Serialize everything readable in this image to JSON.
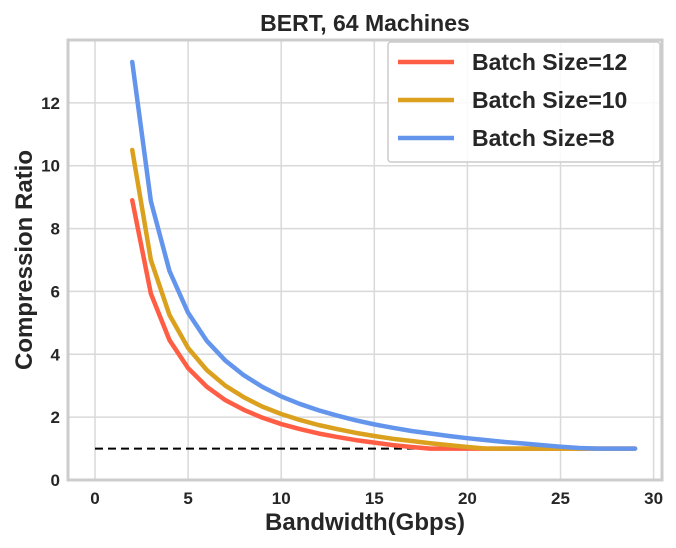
{
  "chart_data": {
    "type": "line",
    "title": "BERT, 64 Machines",
    "xlabel": "Bandwidth(Gbps)",
    "ylabel": "Compression Ratio",
    "xlim": [
      -1.45,
      30.45
    ],
    "ylim": [
      0,
      14
    ],
    "xticks": [
      0,
      5,
      10,
      15,
      20,
      25,
      30
    ],
    "yticks": [
      0,
      2,
      4,
      6,
      8,
      10,
      12
    ],
    "grid": true,
    "legend_position": "top-right",
    "x": [
      2,
      3,
      4,
      5,
      6,
      7,
      8,
      9,
      10,
      11,
      12,
      13,
      14,
      15,
      16,
      17,
      18,
      19,
      20,
      21,
      22,
      23,
      24,
      25,
      26,
      27,
      28,
      29
    ],
    "series": [
      {
        "name": "Batch Size=12",
        "color": "#ff5e45",
        "values": [
          8.9,
          5.93,
          4.45,
          3.56,
          2.97,
          2.54,
          2.23,
          1.98,
          1.78,
          1.62,
          1.48,
          1.37,
          1.27,
          1.19,
          1.11,
          1.05,
          1,
          1,
          1,
          1,
          1,
          1,
          1,
          1,
          1,
          1,
          1,
          1
        ]
      },
      {
        "name": "Batch Size=10",
        "color": "#dba11e",
        "values": [
          10.5,
          7,
          5.25,
          4.2,
          3.5,
          3,
          2.63,
          2.33,
          2.1,
          1.91,
          1.75,
          1.62,
          1.5,
          1.4,
          1.31,
          1.24,
          1.17,
          1.11,
          1.05,
          1,
          1,
          1,
          1,
          1,
          1,
          1,
          1,
          1
        ]
      },
      {
        "name": "Batch Size=8",
        "color": "#6495ed",
        "values": [
          13.3,
          8.87,
          6.65,
          5.32,
          4.43,
          3.8,
          3.33,
          2.96,
          2.66,
          2.42,
          2.22,
          2.05,
          1.9,
          1.77,
          1.66,
          1.56,
          1.48,
          1.4,
          1.33,
          1.27,
          1.21,
          1.16,
          1.11,
          1.06,
          1.02,
          1,
          1,
          1
        ]
      }
    ],
    "reference_line": {
      "y": 1,
      "x_range": [
        0,
        29
      ],
      "style": "dashed",
      "color": "#000000"
    }
  }
}
